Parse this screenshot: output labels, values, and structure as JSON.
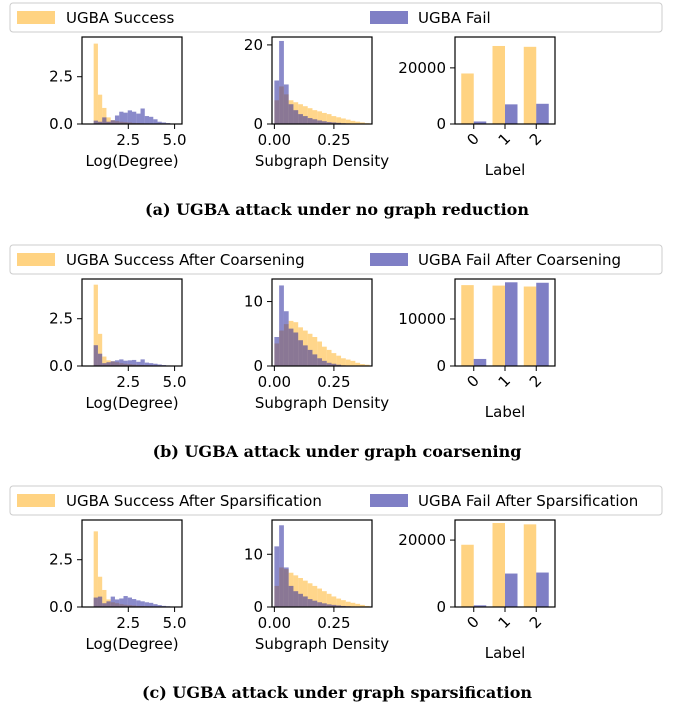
{
  "colors": {
    "success": "#FFC04D",
    "fail": "#2A2A9E",
    "axis": "#000000",
    "legend_border": "#CCCCCC"
  },
  "chart_data": [
    {
      "panel": "a",
      "caption": "(a) UGBA attack under no graph reduction",
      "legend": [
        "UGBA Success",
        "UGBA Fail"
      ],
      "subplots": [
        {
          "type": "histogram",
          "xlabel": "Log(Degree)",
          "xlim": [
            0,
            5.4
          ],
          "ylim": [
            0,
            4.6
          ],
          "xticks": [
            "2.5",
            "5.0"
          ],
          "yticks": [
            "0.0",
            "2.5"
          ],
          "bin_edges": [
            0.63,
            0.86,
            1.09,
            1.32,
            1.55,
            1.78,
            2.01,
            2.24,
            2.47,
            2.7,
            2.93,
            3.16,
            3.39,
            3.62,
            3.85,
            4.08,
            4.31,
            4.54,
            4.77
          ],
          "series": [
            {
              "values": [
                4.25,
                1.55,
                0.85,
                0.35,
                0.2,
                0.15,
                0.12,
                0.1,
                0.08,
                0.06,
                0.05,
                0.04,
                0.03,
                0.02,
                0.02,
                0.01,
                0.01,
                0.01
              ]
            },
            {
              "values": [
                0.18,
                0.12,
                0.35,
                0.12,
                0.2,
                0.45,
                0.65,
                0.6,
                0.72,
                0.65,
                0.55,
                0.82,
                0.42,
                0.38,
                0.25,
                0.12,
                0.08,
                0.05
              ]
            }
          ]
        },
        {
          "type": "histogram",
          "xlabel": "Subgraph Density",
          "xlim": [
            -0.01,
            0.41
          ],
          "ylim": [
            0,
            22
          ],
          "xticks": [
            "0.00",
            "0.25"
          ],
          "yticks": [
            "0",
            "20"
          ],
          "bin_edges": [
            0.0,
            0.02,
            0.04,
            0.06,
            0.08,
            0.1,
            0.12,
            0.14,
            0.16,
            0.18,
            0.2,
            0.22,
            0.24,
            0.26,
            0.28,
            0.3,
            0.32,
            0.34,
            0.36,
            0.38,
            0.4
          ],
          "series": [
            {
              "values": [
                6,
                9.5,
                7.5,
                6,
                5.5,
                5,
                4.5,
                4,
                3.5,
                3.2,
                2.8,
                2.5,
                2,
                1.7,
                1.4,
                1.1,
                0.8,
                0.6,
                0.4,
                0.2
              ]
            },
            {
              "values": [
                11,
                21,
                10,
                5,
                3.5,
                2.5,
                2,
                1.5,
                1.2,
                0.9,
                0.7,
                0.5,
                0.4,
                0.3,
                0.2,
                0.15,
                0.1,
                0.08,
                0.05,
                0.03
              ]
            }
          ]
        },
        {
          "type": "bar",
          "xlabel": "Label",
          "categories": [
            "0",
            "1",
            "2"
          ],
          "ylim": [
            0,
            31000
          ],
          "yticks": [
            "0",
            "20000"
          ],
          "series": [
            {
              "name": "UGBA Success",
              "values": [
                18000,
                27800,
                27500
              ]
            },
            {
              "name": "UGBA Fail",
              "values": [
                900,
                7000,
                7200
              ]
            }
          ]
        }
      ]
    },
    {
      "panel": "b",
      "caption": "(b) UGBA attack under graph coarsening",
      "legend": [
        "UGBA Success After Coarsening",
        "UGBA Fail After Coarsening"
      ],
      "subplots": [
        {
          "type": "histogram",
          "xlabel": "Log(Degree)",
          "xlim": [
            0,
            5.4
          ],
          "ylim": [
            0,
            4.6
          ],
          "xticks": [
            "2.5",
            "5.0"
          ],
          "yticks": [
            "0.0",
            "2.5"
          ],
          "bin_edges": [
            0.63,
            0.86,
            1.09,
            1.32,
            1.55,
            1.78,
            2.01,
            2.24,
            2.47,
            2.7,
            2.93,
            3.16,
            3.39,
            3.62,
            3.85,
            4.08,
            4.31,
            4.54,
            4.77
          ],
          "series": [
            {
              "values": [
                4.3,
                1.7,
                0.5,
                0.3,
                0.25,
                0.2,
                0.15,
                0.12,
                0.1,
                0.08,
                0.06,
                0.05,
                0.04,
                0.03,
                0.02,
                0.02,
                0.01,
                0.01
              ]
            },
            {
              "values": [
                1.1,
                0.65,
                0.15,
                0.2,
                0.25,
                0.3,
                0.35,
                0.28,
                0.3,
                0.32,
                0.22,
                0.35,
                0.18,
                0.15,
                0.12,
                0.08,
                0.05,
                0.03
              ]
            }
          ]
        },
        {
          "type": "histogram",
          "xlabel": "Subgraph Density",
          "xlim": [
            -0.01,
            0.41
          ],
          "ylim": [
            0,
            13.5
          ],
          "xticks": [
            "0.00",
            "0.25"
          ],
          "yticks": [
            "0",
            "10"
          ],
          "bin_edges": [
            0.0,
            0.02,
            0.04,
            0.06,
            0.08,
            0.1,
            0.12,
            0.14,
            0.16,
            0.18,
            0.2,
            0.22,
            0.24,
            0.26,
            0.28,
            0.3,
            0.32,
            0.34,
            0.36,
            0.38,
            0.4
          ],
          "series": [
            {
              "values": [
                3.5,
                5.5,
                6.5,
                7,
                6.8,
                6,
                5.5,
                5,
                4.5,
                3.8,
                3,
                2.5,
                2,
                1.6,
                1.2,
                1,
                0.8,
                0.5,
                0.3,
                0.2
              ]
            },
            {
              "values": [
                4.5,
                12.5,
                8.5,
                5.8,
                5.2,
                4,
                3.2,
                2.5,
                1.8,
                1.2,
                0.8,
                0.5,
                0.35,
                0.2,
                0.1,
                0.05,
                0.03,
                0.02,
                0.01,
                0.01
              ]
            }
          ]
        },
        {
          "type": "bar",
          "xlabel": "Label",
          "categories": [
            "0",
            "1",
            "2"
          ],
          "ylim": [
            0,
            18500
          ],
          "yticks": [
            "0",
            "10000"
          ],
          "series": [
            {
              "name": "UGBA Success After Coarsening",
              "values": [
                17200,
                17100,
                16900
              ]
            },
            {
              "name": "UGBA Fail After Coarsening",
              "values": [
                1500,
                17800,
                17700
              ]
            }
          ]
        }
      ]
    },
    {
      "panel": "c",
      "caption": "(c) UGBA attack under graph sparsification",
      "legend": [
        "UGBA Success After Sparsification",
        "UGBA Fail After Sparsification"
      ],
      "subplots": [
        {
          "type": "histogram",
          "xlabel": "Log(Degree)",
          "xlim": [
            0,
            5.4
          ],
          "ylim": [
            0,
            4.6
          ],
          "xticks": [
            "2.5",
            "5.0"
          ],
          "yticks": [
            "0.0",
            "2.5"
          ],
          "bin_edges": [
            0.63,
            0.86,
            1.09,
            1.32,
            1.55,
            1.78,
            2.01,
            2.24,
            2.47,
            2.7,
            2.93,
            3.16,
            3.39,
            3.62,
            3.85,
            4.08,
            4.31,
            4.54,
            4.77
          ],
          "series": [
            {
              "values": [
                4.0,
                1.6,
                0.9,
                0.4,
                0.25,
                0.2,
                0.15,
                0.12,
                0.1,
                0.08,
                0.06,
                0.05,
                0.04,
                0.03,
                0.02,
                0.02,
                0.01,
                0.01
              ]
            },
            {
              "values": [
                0.5,
                0.55,
                0.2,
                0.3,
                0.55,
                0.4,
                0.45,
                0.58,
                0.5,
                0.42,
                0.35,
                0.3,
                0.25,
                0.22,
                0.15,
                0.1,
                0.06,
                0.04
              ]
            }
          ]
        },
        {
          "type": "histogram",
          "xlabel": "Subgraph Density",
          "xlim": [
            -0.01,
            0.41
          ],
          "ylim": [
            0,
            16.5
          ],
          "xticks": [
            "0.00",
            "0.25"
          ],
          "yticks": [
            "0",
            "10"
          ],
          "bin_edges": [
            0.0,
            0.02,
            0.04,
            0.06,
            0.08,
            0.1,
            0.12,
            0.14,
            0.16,
            0.18,
            0.2,
            0.22,
            0.24,
            0.26,
            0.28,
            0.3,
            0.32,
            0.34,
            0.36,
            0.38,
            0.4
          ],
          "series": [
            {
              "values": [
                4,
                7.5,
                7.2,
                6.5,
                6,
                5.5,
                5,
                4.5,
                4,
                3.5,
                3,
                2.5,
                2,
                1.6,
                1.3,
                1,
                0.8,
                0.6,
                0.4,
                0.2
              ]
            },
            {
              "values": [
                11.5,
                15.5,
                7.5,
                4,
                3,
                2.5,
                2,
                1.5,
                1.2,
                0.9,
                0.7,
                0.5,
                0.4,
                0.3,
                0.2,
                0.15,
                0.1,
                0.05,
                0.03,
                0.02
              ]
            }
          ]
        },
        {
          "type": "bar",
          "xlabel": "Label",
          "categories": [
            "0",
            "1",
            "2"
          ],
          "ylim": [
            0,
            26000
          ],
          "yticks": [
            "0",
            "20000"
          ],
          "series": [
            {
              "name": "UGBA Success After Sparsification",
              "values": [
                18600,
                25100,
                24700
              ]
            },
            {
              "name": "UGBA Fail After Sparsification",
              "values": [
                500,
                10000,
                10300
              ]
            }
          ]
        }
      ]
    }
  ]
}
